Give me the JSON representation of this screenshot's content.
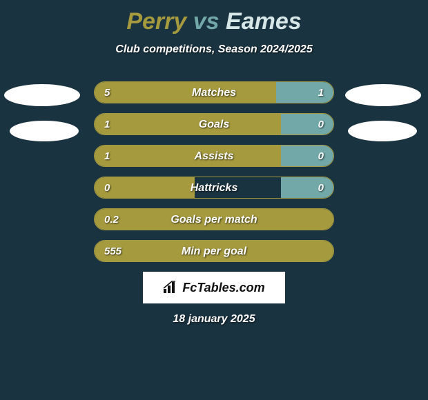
{
  "colors": {
    "background": "#1a3340",
    "accent_left": "#a69a3f",
    "accent_right": "#72a8a8",
    "text_white": "#ffffff"
  },
  "title": {
    "player1": "Perry",
    "vs": "vs",
    "player2": "Eames"
  },
  "subtitle": "Club competitions, Season 2024/2025",
  "stats": [
    {
      "label": "Matches",
      "left_val": "5",
      "right_val": "1",
      "left_pct": 76,
      "right_pct": 24
    },
    {
      "label": "Goals",
      "left_val": "1",
      "right_val": "0",
      "left_pct": 78,
      "right_pct": 22
    },
    {
      "label": "Assists",
      "left_val": "1",
      "right_val": "0",
      "left_pct": 78,
      "right_pct": 22
    },
    {
      "label": "Hattricks",
      "left_val": "0",
      "right_val": "0",
      "left_pct": 42,
      "right_pct": 22
    },
    {
      "label": "Goals per match",
      "left_val": "0.2",
      "right_val": "",
      "left_pct": 100,
      "right_pct": 0
    },
    {
      "label": "Min per goal",
      "left_val": "555",
      "right_val": "",
      "left_pct": 100,
      "right_pct": 0
    }
  ],
  "brand": "FcTables.com",
  "date": "18 january 2025"
}
